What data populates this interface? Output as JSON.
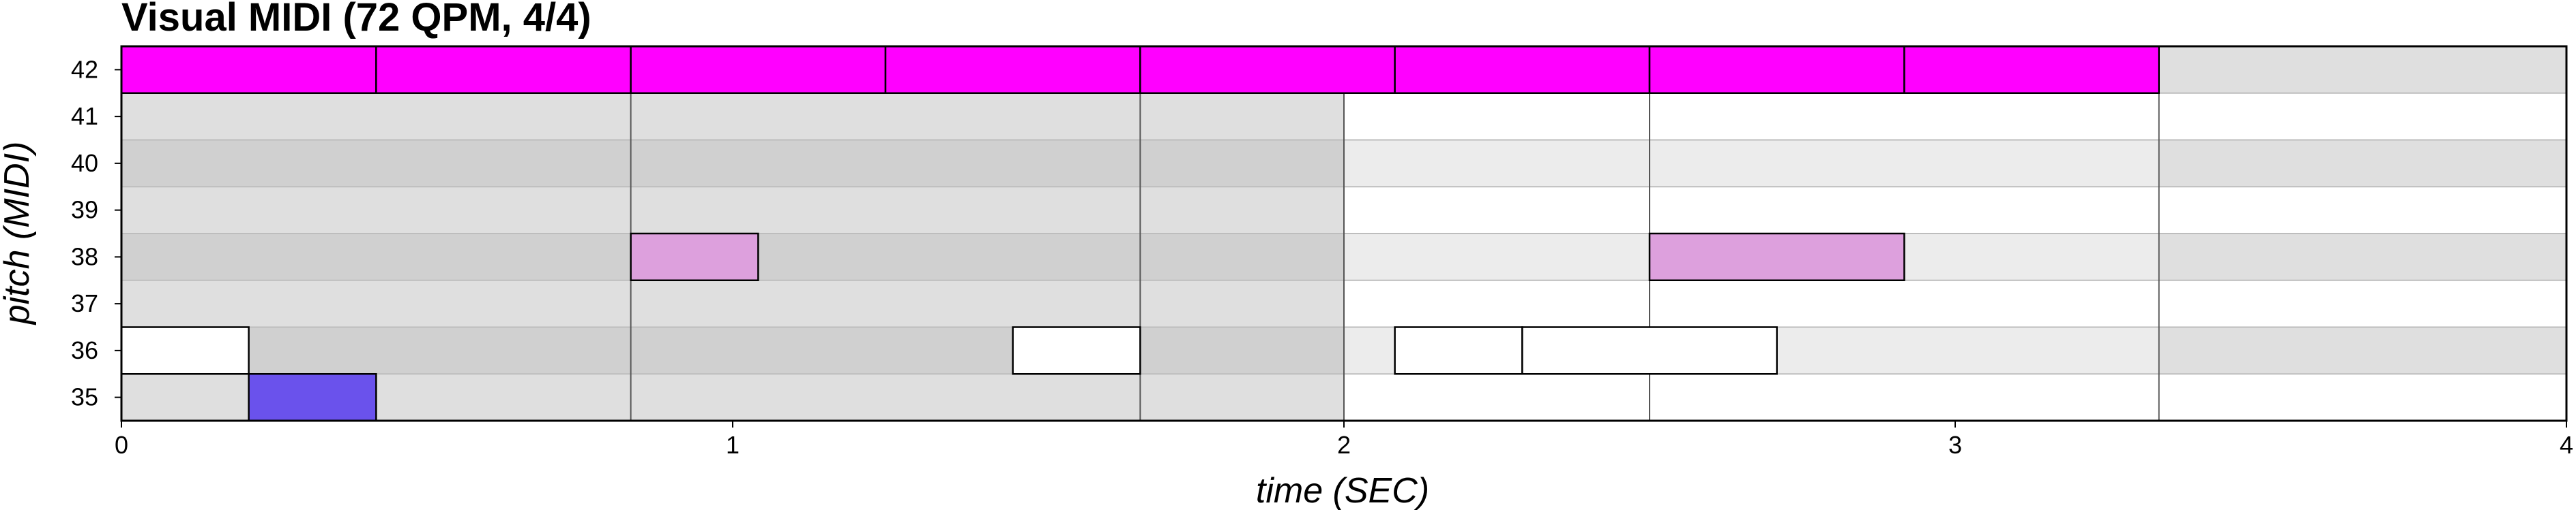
{
  "chart_data": {
    "type": "piano-roll",
    "title": "Visual MIDI (72 QPM, 4/4)",
    "xlabel": "time (SEC)",
    "ylabel": "pitch (MIDI)",
    "xlim": [
      0,
      4
    ],
    "x_ticks": [
      "0",
      "1",
      "2",
      "3",
      "4"
    ],
    "pitches": [
      42,
      41,
      40,
      39,
      38,
      37,
      36,
      35
    ],
    "y_ticks": [
      "42",
      "41",
      "40",
      "39",
      "38",
      "37",
      "36",
      "35"
    ],
    "beat_seconds": 0.8333,
    "bar_boundaries": [
      0,
      0.8333,
      1.6667,
      2.5,
      3.3333
    ],
    "notes": [
      {
        "pitch": 42,
        "start": 0.0,
        "end": 0.4167,
        "color": "#ff00ff"
      },
      {
        "pitch": 42,
        "start": 0.4167,
        "end": 0.8333,
        "color": "#ff00ff"
      },
      {
        "pitch": 42,
        "start": 0.8333,
        "end": 1.25,
        "color": "#ff00ff"
      },
      {
        "pitch": 42,
        "start": 1.25,
        "end": 1.6667,
        "color": "#ff00ff"
      },
      {
        "pitch": 42,
        "start": 1.6667,
        "end": 2.0833,
        "color": "#ff00ff"
      },
      {
        "pitch": 42,
        "start": 2.0833,
        "end": 2.5,
        "color": "#ff00ff"
      },
      {
        "pitch": 42,
        "start": 2.5,
        "end": 2.9167,
        "color": "#ff00ff"
      },
      {
        "pitch": 42,
        "start": 2.9167,
        "end": 3.3333,
        "color": "#ff00ff"
      },
      {
        "pitch": 38,
        "start": 0.8333,
        "end": 1.0417,
        "color": "#dda0dd"
      },
      {
        "pitch": 38,
        "start": 2.5,
        "end": 2.9167,
        "color": "#dda0dd"
      },
      {
        "pitch": 36,
        "start": 0.0,
        "end": 0.2083,
        "color": "#ffffff"
      },
      {
        "pitch": 36,
        "start": 1.4583,
        "end": 1.6667,
        "color": "#ffffff"
      },
      {
        "pitch": 36,
        "start": 2.0833,
        "end": 2.2917,
        "color": "#ffffff"
      },
      {
        "pitch": 36,
        "start": 2.2917,
        "end": 2.7083,
        "color": "#ffffff"
      },
      {
        "pitch": 35,
        "start": 0.2083,
        "end": 0.4167,
        "color": "#6a52ec"
      }
    ],
    "background_shading": [
      {
        "start": 0.0,
        "end": 2.0,
        "odd_pitch_color": "#dfdfdf",
        "even_pitch_color": "#d0d0d0"
      },
      {
        "start": 2.0,
        "end": 3.3333,
        "odd_pitch_color": "#ffffff",
        "even_pitch_color": "#ececec"
      },
      {
        "start": 3.3333,
        "end": 4.0,
        "odd_pitch_color": "#ffffff",
        "even_pitch_color": "#dfdfdf"
      }
    ],
    "colors": {
      "grid_line": "#555555",
      "light_grid_line": "#bdbdbd",
      "axis": "#000000"
    }
  }
}
